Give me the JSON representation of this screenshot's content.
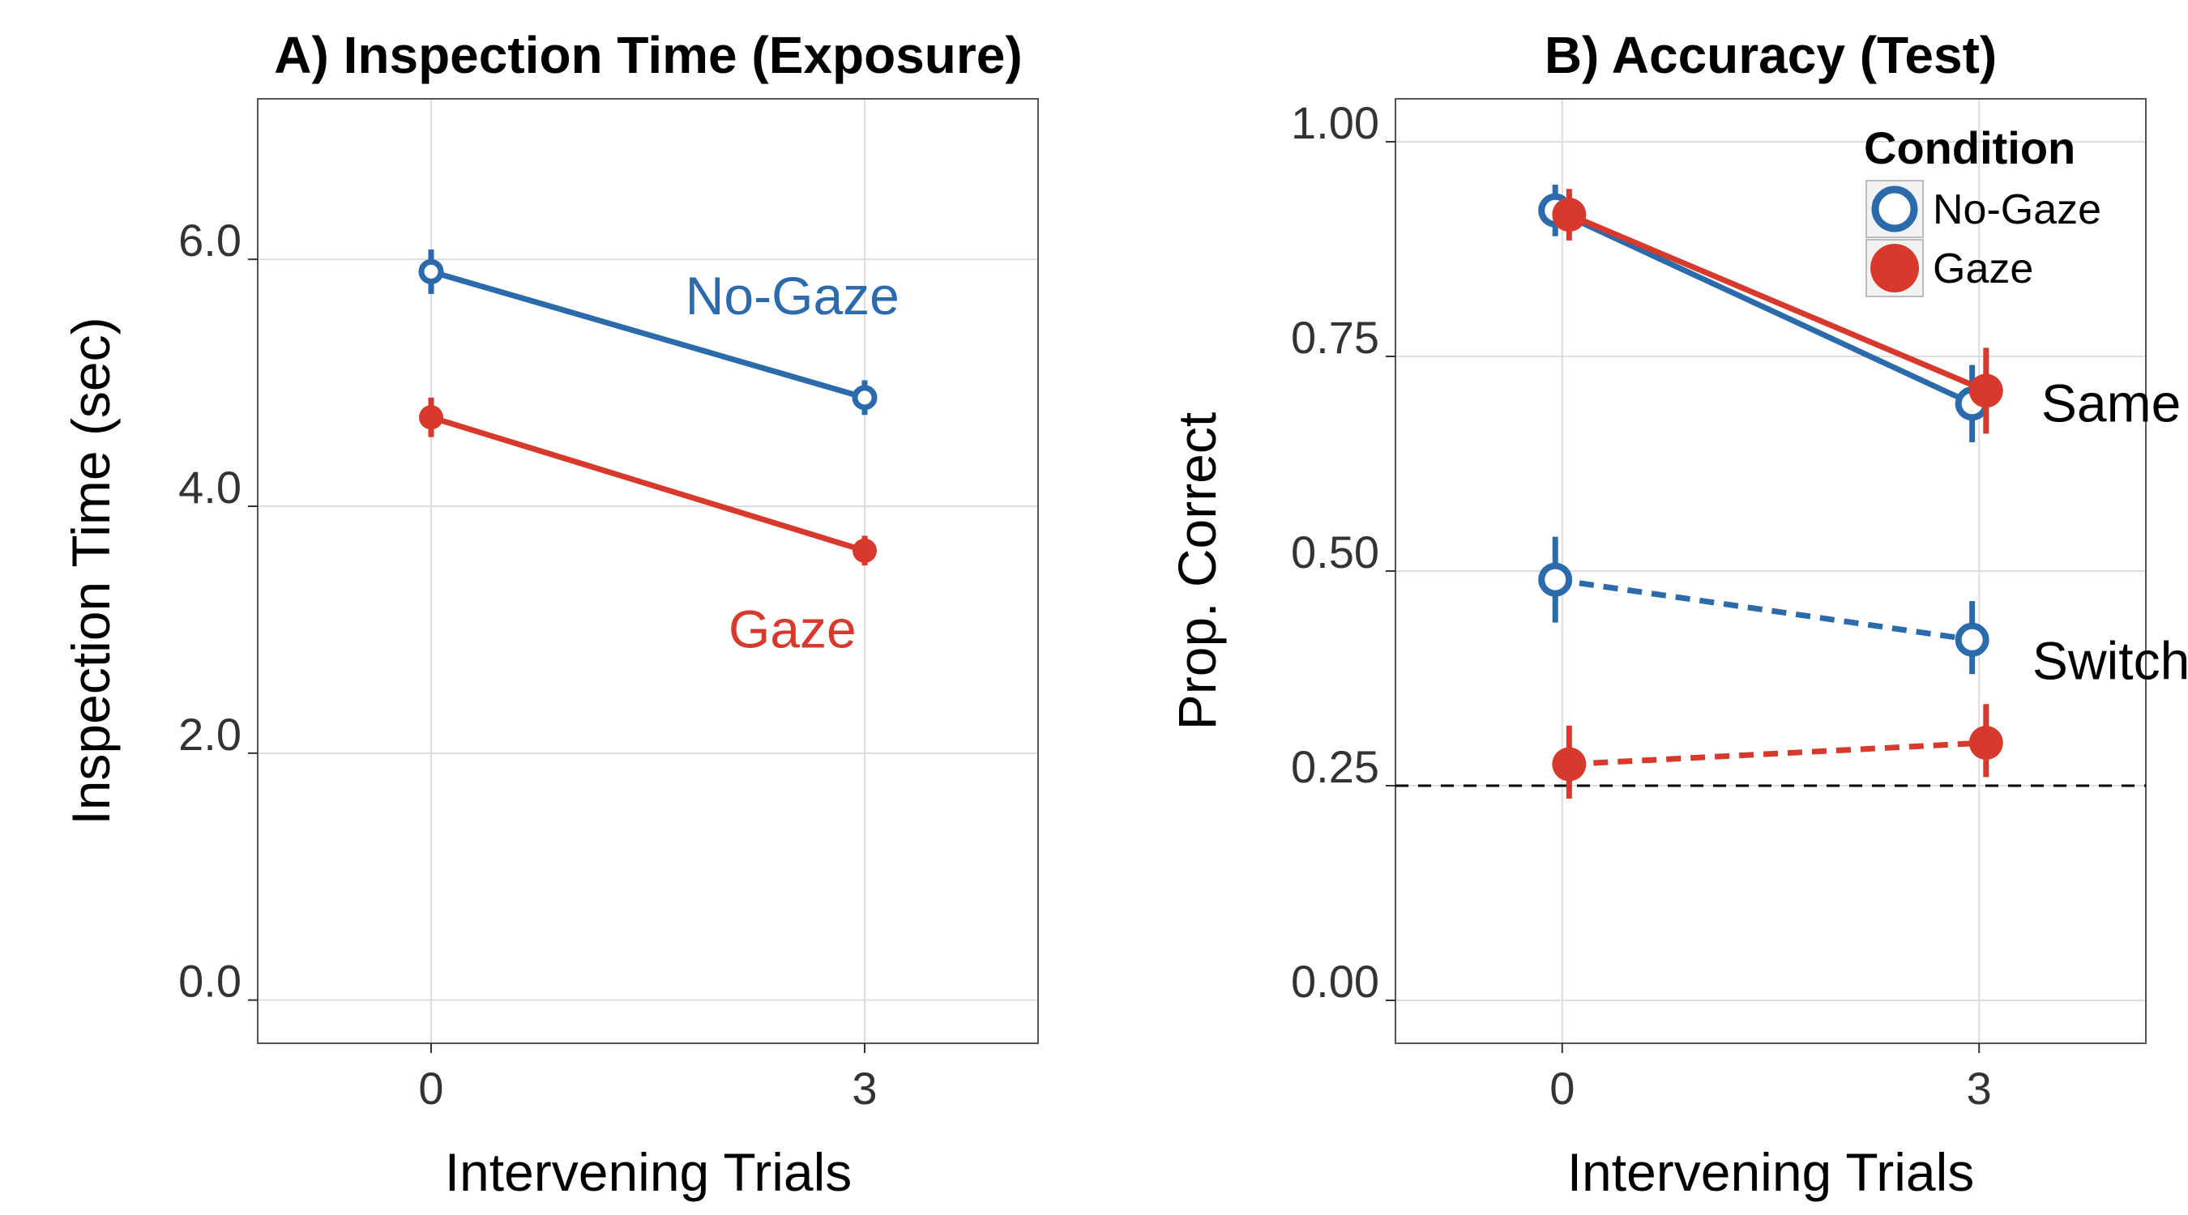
{
  "colors": {
    "no_gaze": "#2b6aab",
    "gaze": "#d73a2c",
    "grid": "#dddddd",
    "chance_line": "#000000"
  },
  "chart_data": [
    {
      "type": "line",
      "title": "A) Inspection Time (Exposure)",
      "xlabel": "Intervening Trials",
      "ylabel": "Inspection Time (sec)",
      "x_categories": [
        "0",
        "3"
      ],
      "xlim": [
        -1.2,
        4.2
      ],
      "ylim": [
        -0.35,
        7.3
      ],
      "y_ticks": [
        0,
        2,
        4,
        6
      ],
      "y_tick_labels": [
        "0.0",
        "2.0",
        "4.0",
        "6.0"
      ],
      "series": [
        {
          "name": "No-Gaze",
          "color_key": "no_gaze",
          "marker": "open-circle",
          "line": "solid",
          "x": [
            0,
            3
          ],
          "y": [
            5.9,
            4.88
          ],
          "ci_low": [
            5.72,
            4.74
          ],
          "ci_high": [
            6.08,
            5.02
          ]
        },
        {
          "name": "Gaze",
          "color_key": "gaze",
          "marker": "filled-circle",
          "line": "solid",
          "x": [
            0,
            3
          ],
          "y": [
            4.72,
            3.64
          ],
          "ci_low": [
            4.56,
            3.52
          ],
          "ci_high": [
            4.88,
            3.76
          ]
        }
      ],
      "annotations": [
        {
          "text": "No-Gaze",
          "color_key": "no_gaze",
          "x": 2.5,
          "y": 5.7
        },
        {
          "text": "Gaze",
          "color_key": "gaze",
          "x": 2.5,
          "y": 3.0
        }
      ],
      "grid": true,
      "legend": "none"
    },
    {
      "type": "line",
      "title": "B) Accuracy (Test)",
      "xlabel": "Intervening Trials",
      "ylabel": "Prop. Correct",
      "x_categories": [
        "0",
        "3"
      ],
      "xlim": [
        -1.2,
        4.2
      ],
      "ylim": [
        -0.05,
        1.05
      ],
      "y_ticks": [
        0,
        0.25,
        0.5,
        0.75,
        1.0
      ],
      "y_tick_labels": [
        "0.00",
        "0.25",
        "0.50",
        "0.75",
        "1.00"
      ],
      "reference_line": {
        "y": 0.25,
        "style": "dashed"
      },
      "series": [
        {
          "name": "No-Gaze",
          "group": "Same",
          "color_key": "no_gaze",
          "marker": "open-circle",
          "line": "solid",
          "x": [
            -0.05,
            2.95
          ],
          "y": [
            0.92,
            0.695
          ],
          "ci_low": [
            0.89,
            0.65
          ],
          "ci_high": [
            0.95,
            0.74
          ]
        },
        {
          "name": "Gaze",
          "group": "Same",
          "color_key": "gaze",
          "marker": "filled-circle",
          "line": "solid",
          "x": [
            0.05,
            3.05
          ],
          "y": [
            0.915,
            0.71
          ],
          "ci_low": [
            0.885,
            0.66
          ],
          "ci_high": [
            0.945,
            0.76
          ]
        },
        {
          "name": "No-Gaze",
          "group": "Switch",
          "color_key": "no_gaze",
          "marker": "open-circle",
          "line": "dashed",
          "x": [
            -0.05,
            2.95
          ],
          "y": [
            0.49,
            0.42
          ],
          "ci_low": [
            0.44,
            0.38
          ],
          "ci_high": [
            0.54,
            0.465
          ]
        },
        {
          "name": "Gaze",
          "group": "Switch",
          "color_key": "gaze",
          "marker": "filled-circle",
          "line": "dashed",
          "x": [
            0.05,
            3.05
          ],
          "y": [
            0.275,
            0.3
          ],
          "ci_low": [
            0.235,
            0.26
          ],
          "ci_high": [
            0.32,
            0.345
          ]
        }
      ],
      "annotations": [
        {
          "text": "Same",
          "x": 3.95,
          "y": 0.695
        },
        {
          "text": "Switch",
          "x": 3.95,
          "y": 0.395
        }
      ],
      "legend_title": "Condition",
      "legend_items": [
        {
          "label": "No-Gaze",
          "color_key": "no_gaze",
          "marker": "open-circle"
        },
        {
          "label": "Gaze",
          "color_key": "gaze",
          "marker": "filled-circle"
        }
      ],
      "legend": "top-right",
      "grid": true
    }
  ]
}
